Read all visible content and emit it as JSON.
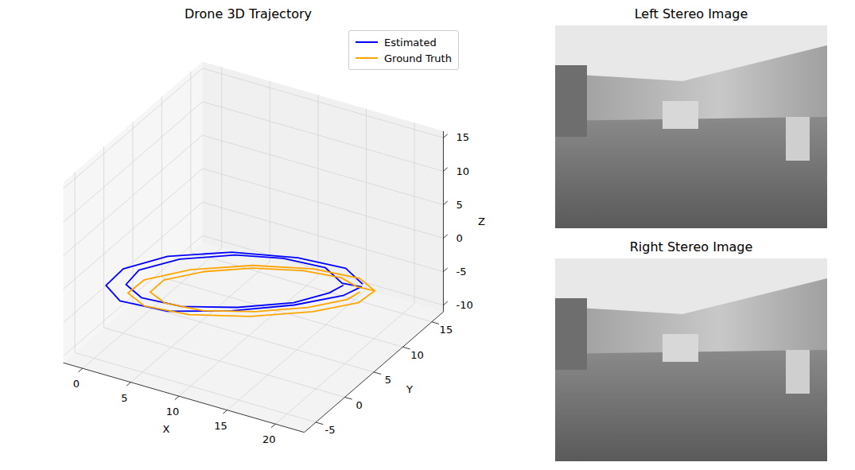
{
  "chart_data": [
    {
      "type": "line3d",
      "title": "Drone 3D Trajectory",
      "xlabel": "X",
      "ylabel": "Y",
      "zlabel": "Z",
      "xlim": [
        -2,
        23
      ],
      "ylim": [
        -7,
        17
      ],
      "zlim": [
        -11,
        16
      ],
      "xticks": [
        0,
        5,
        10,
        15,
        20
      ],
      "yticks": [
        -5,
        0,
        5,
        10,
        15
      ],
      "zticks": [
        -10,
        -5,
        0,
        5,
        10,
        15
      ],
      "grid": true,
      "legend": "upper right",
      "series": [
        {
          "name": "Estimated",
          "color": "#0000ff",
          "x": [
            18.5,
            16.0,
            11.5,
            6.0,
            1.3,
            -1.2,
            -1.3,
            1.0,
            5.5,
            10.5,
            15.0,
            18.0,
            18.7,
            17.0,
            14.5,
            10.5,
            6.5,
            2.5,
            0.2,
            0.3,
            2.5,
            6.3,
            10.8,
            14.8,
            16.8,
            17.2
          ],
          "y": [
            10.5,
            11.8,
            11.0,
            8.8,
            5.5,
            2.0,
            -0.8,
            -2.2,
            -1.5,
            1.2,
            4.6,
            8.0,
            10.0,
            9.5,
            10.8,
            10.2,
            8.5,
            5.6,
            2.4,
            0.0,
            -1.0,
            -0.4,
            1.8,
            4.8,
            7.6,
            9.3
          ],
          "z": [
            -3.8,
            -3.5,
            -3.2,
            -3.0,
            -3.1,
            -3.4,
            -3.8,
            -4.1,
            -4.3,
            -4.2,
            -4.0,
            -3.9,
            -3.8,
            -3.6,
            -3.3,
            -3.1,
            -3.0,
            -3.1,
            -3.3,
            -3.6,
            -3.9,
            -4.1,
            -4.0,
            -3.9,
            -3.7,
            -3.7
          ]
        },
        {
          "name": "Ground Truth",
          "color": "#ffa500",
          "x": [
            19.5,
            17.3,
            13.0,
            8.0,
            3.5,
            0.7,
            0.5,
            2.8,
            7.0,
            12.0,
            16.5,
            19.3,
            19.5,
            18.0,
            16.0,
            12.5,
            8.3,
            4.8,
            2.3,
            2.2,
            4.2,
            7.8,
            12.0,
            15.8,
            18.2,
            18.5
          ],
          "y": [
            11.0,
            12.0,
            11.2,
            9.0,
            5.8,
            2.5,
            0.0,
            -1.0,
            -0.3,
            2.0,
            5.3,
            8.5,
            11.0,
            10.5,
            11.0,
            10.3,
            8.5,
            6.0,
            3.2,
            1.0,
            0.2,
            0.8,
            2.8,
            5.6,
            8.4,
            10.0
          ],
          "z": [
            -4.8,
            -4.6,
            -4.4,
            -4.3,
            -4.4,
            -4.6,
            -4.8,
            -5.0,
            -5.1,
            -5.0,
            -4.9,
            -4.8,
            -4.8,
            -4.5,
            -4.3,
            -4.2,
            -4.2,
            -4.3,
            -4.5,
            -4.7,
            -4.9,
            -5.0,
            -4.9,
            -4.8,
            -4.7,
            -4.7
          ]
        }
      ]
    },
    {
      "type": "image",
      "title": "Left Stereo Image"
    },
    {
      "type": "image",
      "title": "Right Stereo Image"
    }
  ]
}
